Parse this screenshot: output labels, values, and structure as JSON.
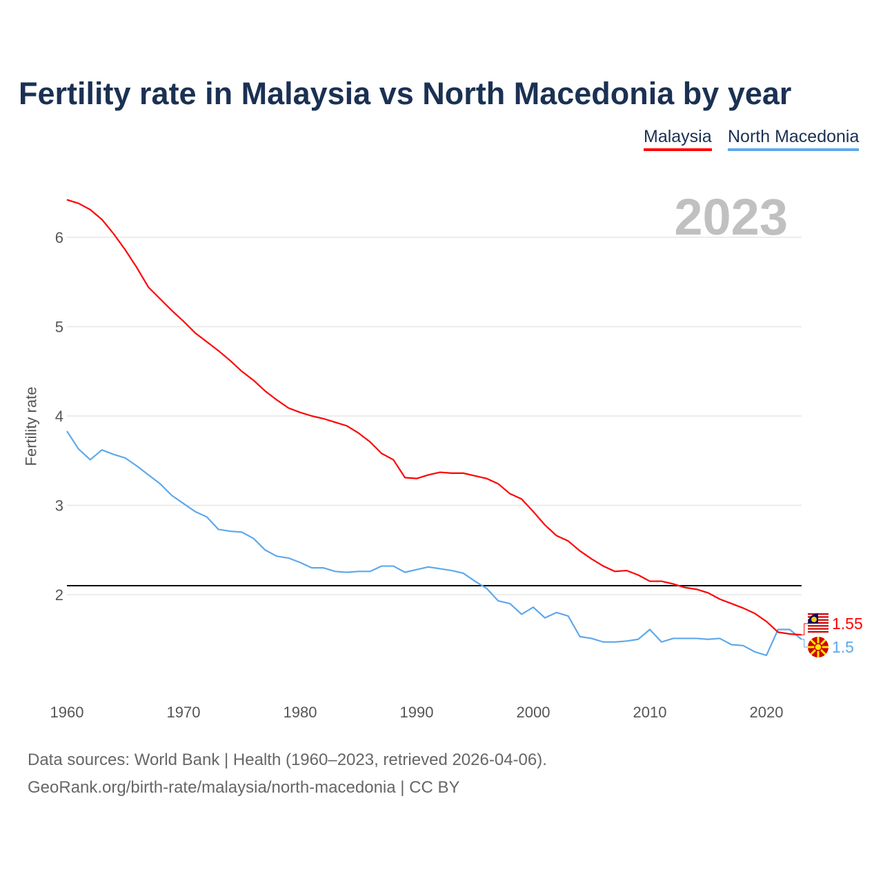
{
  "chart_data": {
    "type": "line",
    "title": "Fertility rate in Malaysia vs North Macedonia by year",
    "ylabel": "Fertility rate",
    "xlabel": "",
    "xlim": [
      1960,
      2023
    ],
    "ylim": [
      1,
      6.6
    ],
    "xticks": [
      1960,
      1970,
      1980,
      1990,
      2000,
      2010,
      2020
    ],
    "yticks": [
      2,
      3,
      4,
      5,
      6
    ],
    "grid": true,
    "legend_position": "top-right",
    "current_year_label": "2023",
    "reference_line": {
      "value": 2.1,
      "color": "#000000"
    },
    "x": [
      1960,
      1961,
      1962,
      1963,
      1964,
      1965,
      1966,
      1967,
      1968,
      1969,
      1970,
      1971,
      1972,
      1973,
      1974,
      1975,
      1976,
      1977,
      1978,
      1979,
      1980,
      1981,
      1982,
      1983,
      1984,
      1985,
      1986,
      1987,
      1988,
      1989,
      1990,
      1991,
      1992,
      1993,
      1994,
      1995,
      1996,
      1997,
      1998,
      1999,
      2000,
      2001,
      2002,
      2003,
      2004,
      2005,
      2006,
      2007,
      2008,
      2009,
      2010,
      2011,
      2012,
      2013,
      2014,
      2015,
      2016,
      2017,
      2018,
      2019,
      2020,
      2021,
      2022,
      2023
    ],
    "series": [
      {
        "name": "Malaysia",
        "color": "#ff0000",
        "end_label": "1.55",
        "flag": "malaysia-flag",
        "values": [
          6.42,
          6.38,
          6.31,
          6.2,
          6.04,
          5.86,
          5.66,
          5.44,
          5.31,
          5.18,
          5.06,
          4.93,
          4.83,
          4.73,
          4.62,
          4.5,
          4.4,
          4.28,
          4.18,
          4.09,
          4.04,
          4.0,
          3.97,
          3.93,
          3.89,
          3.81,
          3.71,
          3.58,
          3.51,
          3.31,
          3.3,
          3.34,
          3.37,
          3.36,
          3.36,
          3.33,
          3.3,
          3.24,
          3.13,
          3.07,
          2.93,
          2.78,
          2.66,
          2.6,
          2.49,
          2.4,
          2.32,
          2.26,
          2.27,
          2.22,
          2.15,
          2.15,
          2.12,
          2.08,
          2.06,
          2.02,
          1.95,
          1.9,
          1.85,
          1.79,
          1.7,
          1.58,
          1.56,
          1.55
        ]
      },
      {
        "name": "North Macedonia",
        "color": "#5ea8ec",
        "end_label": "1.5",
        "flag": "north-macedonia-flag",
        "values": [
          3.83,
          3.63,
          3.51,
          3.62,
          3.57,
          3.53,
          3.44,
          3.34,
          3.24,
          3.11,
          3.02,
          2.93,
          2.87,
          2.73,
          2.71,
          2.7,
          2.63,
          2.5,
          2.43,
          2.41,
          2.36,
          2.3,
          2.3,
          2.26,
          2.25,
          2.26,
          2.26,
          2.32,
          2.32,
          2.25,
          2.28,
          2.31,
          2.29,
          2.27,
          2.24,
          2.15,
          2.07,
          1.93,
          1.9,
          1.78,
          1.86,
          1.74,
          1.8,
          1.76,
          1.53,
          1.51,
          1.47,
          1.47,
          1.48,
          1.5,
          1.61,
          1.47,
          1.51,
          1.51,
          1.51,
          1.5,
          1.51,
          1.44,
          1.43,
          1.36,
          1.32,
          1.61,
          1.61,
          1.5
        ]
      }
    ]
  },
  "footer": {
    "line1": "Data sources: World Bank | Health (1960–2023, retrieved 2026-04-06).",
    "line2": "GeoRank.org/birth-rate/malaysia/north-macedonia | CC BY"
  }
}
